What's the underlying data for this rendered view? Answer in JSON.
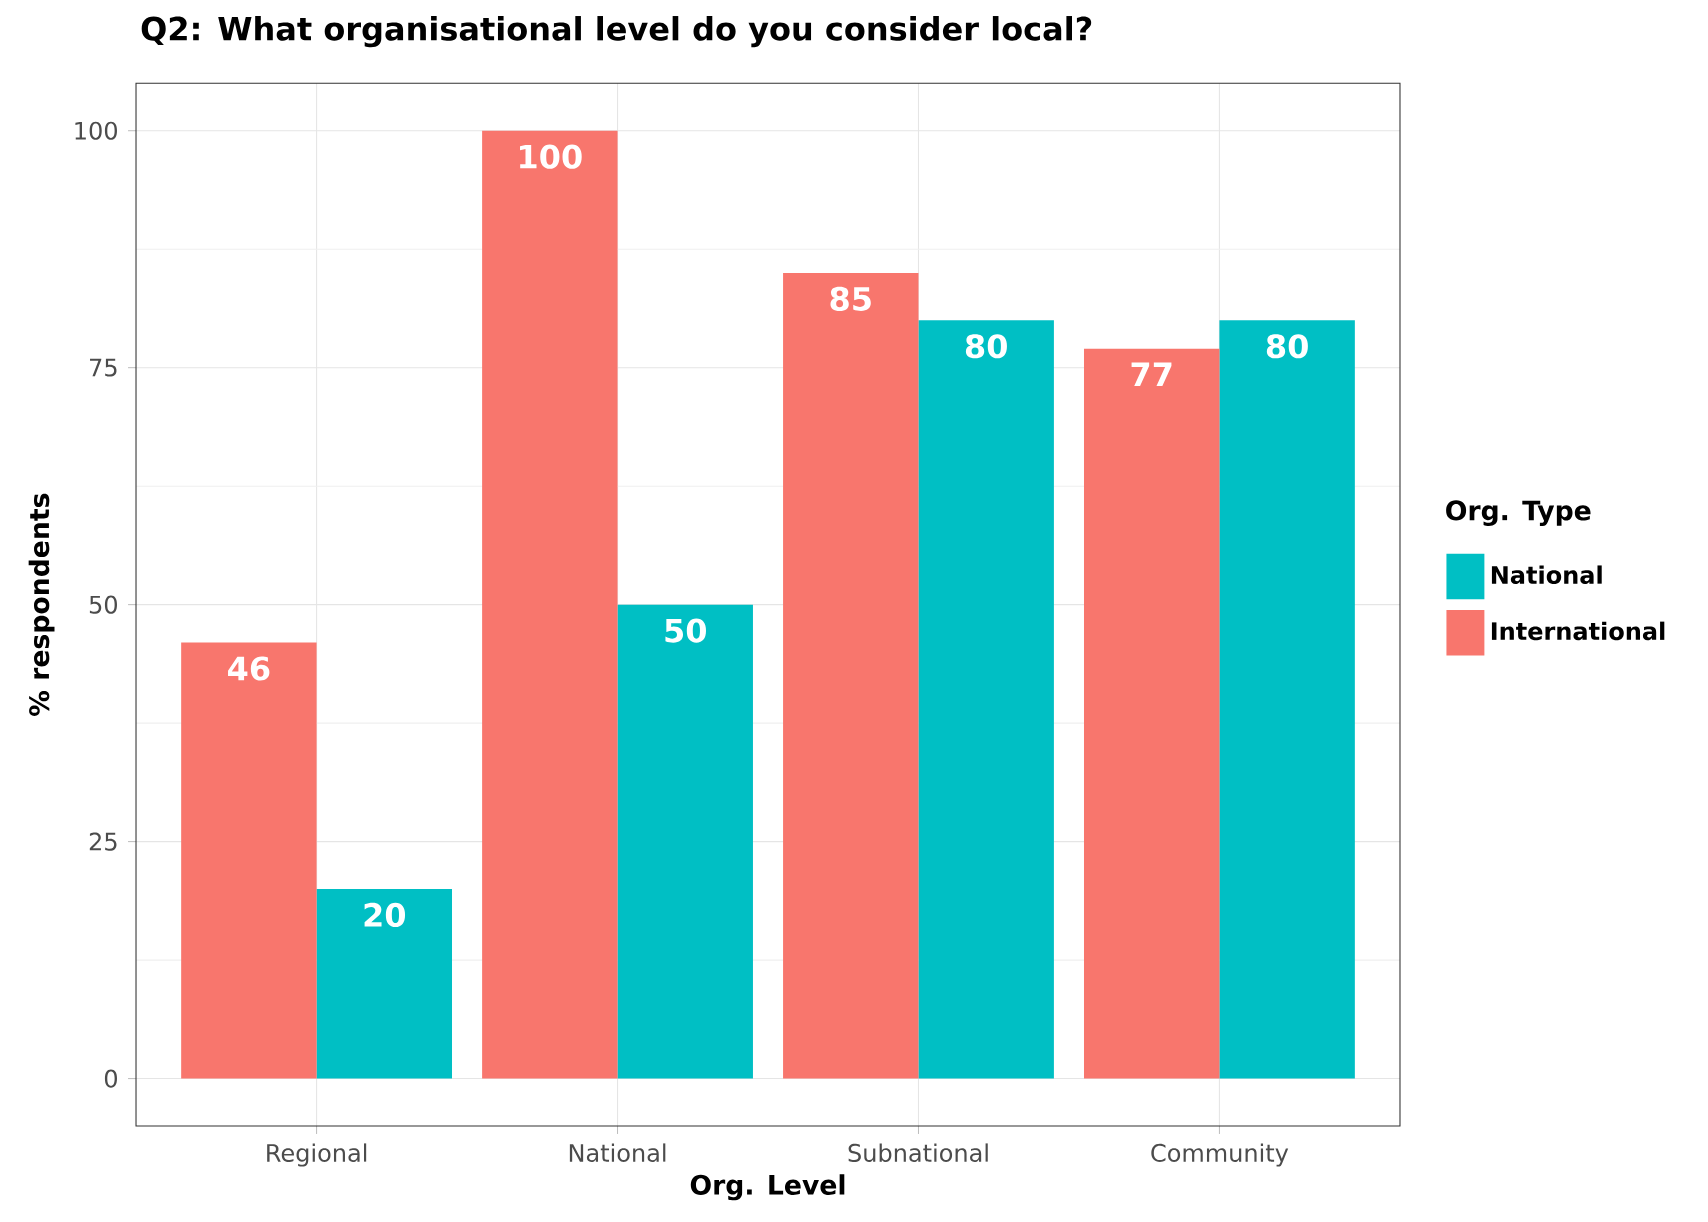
{
  "chart_data": {
    "type": "bar",
    "title": "Q2: What organisational level do you consider local?",
    "xlabel": "Org. Level",
    "ylabel": "% respondents",
    "legend_title": "Org. Type",
    "categories": [
      "Regional",
      "National",
      "Subnational",
      "Community"
    ],
    "series": [
      {
        "name": "International",
        "color": "#f8766d",
        "values": [
          46,
          100,
          85,
          77
        ]
      },
      {
        "name": "National",
        "color": "#00bfc4",
        "values": [
          20,
          50,
          80,
          80
        ]
      }
    ],
    "ylim": [
      -5,
      105
    ],
    "yticks": [
      0,
      25,
      50,
      75,
      100
    ],
    "grid": true,
    "legend": "right",
    "data_labels": true
  }
}
